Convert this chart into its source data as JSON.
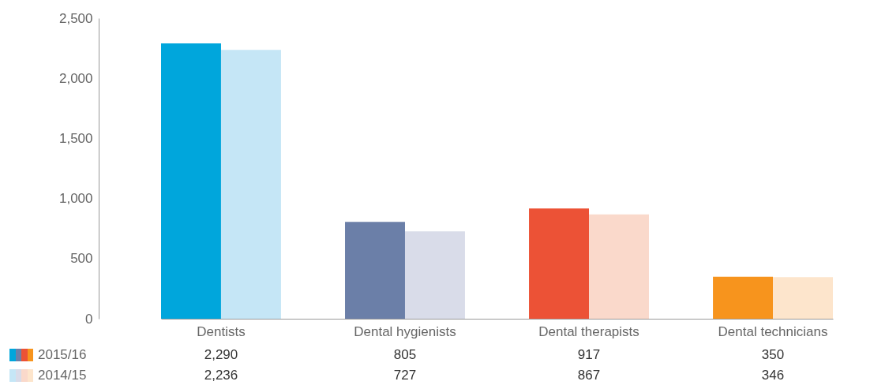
{
  "chart_data": {
    "type": "bar",
    "categories": [
      "Dentists",
      "Dental hygienists",
      "Dental therapists",
      "Dental technicians"
    ],
    "series": [
      {
        "name": "2015/16",
        "colors": [
          "#00a6dc",
          "#6b7fa8",
          "#ec5236",
          "#f7941d"
        ],
        "values": [
          2290,
          805,
          917,
          350
        ],
        "value_labels": [
          "2,290",
          "805",
          "917",
          "350"
        ]
      },
      {
        "name": "2014/15",
        "colors": [
          "#c5e6f6",
          "#d9dce9",
          "#fad9cb",
          "#fde5cc"
        ],
        "values": [
          2236,
          727,
          867,
          346
        ],
        "value_labels": [
          "2,236",
          "727",
          "867",
          "346"
        ]
      }
    ],
    "ylim": [
      0,
      2500
    ],
    "yticks": [
      0,
      500,
      {
        "value": 1000,
        "label": "1,000"
      },
      {
        "value": 1500,
        "label": "1,500"
      },
      {
        "value": 2000,
        "label": "2,000"
      },
      {
        "value": 2500,
        "label": "2,500"
      }
    ],
    "grid": false,
    "legend": "bottom left"
  }
}
